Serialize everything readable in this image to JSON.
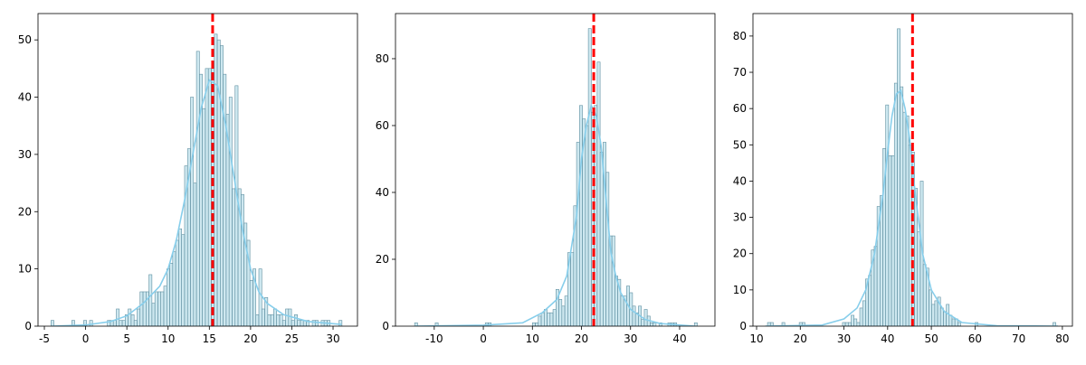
{
  "chart_data": [
    {
      "type": "histogram",
      "color": "#add8e6",
      "edgecolor": "#5f8fa0",
      "bins": [
        -4.2,
        -3.84,
        -3.48,
        -3.12,
        -2.76,
        -2.4,
        -2.04,
        -1.68,
        -1.32,
        -0.96,
        -0.6,
        -0.24,
        0.12,
        0.48,
        0.84,
        1.2,
        1.56,
        1.92,
        2.28,
        2.64,
        3.0,
        3.36,
        3.72,
        4.08,
        4.44,
        4.8,
        5.16,
        5.52,
        5.88,
        6.24,
        6.6,
        6.96,
        7.32,
        7.68,
        8.04,
        8.4,
        8.76,
        9.12,
        9.48,
        9.84,
        10.2,
        10.56,
        10.92,
        11.28,
        11.64,
        12.0,
        12.36,
        12.72,
        13.08,
        13.44,
        13.8,
        14.16,
        14.52,
        14.88,
        15.24,
        15.6,
        15.96,
        16.32,
        16.68,
        17.04,
        17.4,
        17.76,
        18.12,
        18.48,
        18.84,
        19.2,
        19.56,
        19.92,
        20.28,
        20.64,
        21.0,
        21.36,
        21.72,
        22.08,
        22.44,
        22.8,
        23.16,
        23.52,
        23.88,
        24.24,
        24.6,
        24.96,
        25.32,
        25.68,
        26.04,
        26.4,
        26.76,
        27.12,
        27.48,
        27.84,
        28.2,
        28.56,
        28.92,
        29.28,
        29.64,
        30.0,
        30.36,
        30.72,
        31.08,
        31.44
      ],
      "values": [
        1,
        0,
        0,
        0,
        0,
        0,
        0,
        1,
        0,
        0,
        0,
        1,
        0,
        1,
        0,
        0,
        0,
        0,
        0,
        1,
        1,
        1,
        3,
        1,
        1,
        2,
        3,
        2,
        1,
        3,
        6,
        6,
        6,
        9,
        4,
        6,
        6,
        6,
        7,
        10,
        11,
        13,
        15,
        17,
        16,
        28,
        31,
        40,
        25,
        48,
        44,
        38,
        45,
        45,
        45,
        51,
        50,
        49,
        44,
        37,
        40,
        24,
        42,
        24,
        23,
        18,
        15,
        8,
        10,
        2,
        10,
        3,
        5,
        2,
        2,
        3,
        2,
        2,
        1,
        3,
        3,
        1,
        2,
        1,
        1,
        1,
        1,
        0,
        1,
        1,
        0,
        1,
        1,
        1,
        0,
        0,
        0,
        1,
        0
      ],
      "kde": {
        "color": "#87ceeb",
        "x": [
          -4,
          0,
          3,
          5,
          7,
          9,
          10,
          11,
          12,
          13,
          14,
          15,
          16,
          17,
          18,
          19,
          20,
          21,
          22,
          24,
          27,
          31
        ],
        "values": [
          0,
          0.2,
          0.8,
          1.8,
          4,
          7,
          10,
          15,
          22,
          30,
          38,
          43,
          42,
          35,
          26,
          17,
          10,
          6,
          4,
          2,
          0.8,
          0.3
        ]
      },
      "mean_line": {
        "value": 15.4,
        "color": "#ff0000"
      },
      "xlim": [
        -5.77,
        32.96
      ],
      "ylim": [
        0,
        54.6
      ],
      "xticks": [
        -5,
        0,
        5,
        10,
        15,
        20,
        25,
        30
      ],
      "yticks": [
        0,
        10,
        20,
        30,
        40,
        50
      ]
    },
    {
      "type": "histogram",
      "color": "#add8e6",
      "edgecolor": "#5f8fa0",
      "bins": [
        -14,
        -13.4,
        -12.8,
        -12.2,
        -11.6,
        -11,
        -10.4,
        -9.8,
        -9.2,
        -8.6,
        -8,
        -7.4,
        -6.8,
        -6.2,
        -5.6,
        -5,
        -4.4,
        -3.8,
        -3.2,
        -2.6,
        -2,
        -1.4,
        -0.8,
        -0.2,
        0.4,
        1,
        1.6,
        2.2,
        2.8,
        3.4,
        4,
        4.6,
        5.2,
        5.8,
        6.4,
        7,
        7.6,
        8.2,
        8.8,
        9.4,
        10,
        10.6,
        11.2,
        11.8,
        12.4,
        13,
        13.6,
        14.2,
        14.8,
        15.4,
        16,
        16.6,
        17.2,
        17.8,
        18.4,
        19,
        19.6,
        20.2,
        20.8,
        21.4,
        22,
        22.6,
        23.2,
        23.8,
        24.4,
        25,
        25.6,
        26.2,
        26.8,
        27.4,
        28,
        28.6,
        29.2,
        29.8,
        30.4,
        31,
        31.6,
        32.2,
        32.8,
        33.4,
        34,
        34.6,
        35.2,
        35.8,
        36.4,
        37,
        37.6,
        38.2,
        38.8,
        39.4,
        40,
        40.6,
        41.2,
        41.8,
        42.4,
        43,
        43.6
      ],
      "values": [
        1,
        0,
        0,
        0,
        0,
        0,
        0,
        1,
        0,
        0,
        0,
        0,
        0,
        0,
        0,
        0,
        0,
        0,
        0,
        0,
        0,
        0,
        0,
        0,
        1,
        1,
        0,
        0,
        0,
        0,
        0,
        0,
        0,
        0,
        0,
        0,
        0,
        0,
        0,
        0,
        1,
        1,
        3,
        4,
        5,
        4,
        4,
        5,
        11,
        8,
        6,
        9,
        22,
        22,
        36,
        55,
        66,
        62,
        60,
        89,
        64,
        66,
        79,
        52,
        55,
        46,
        27,
        27,
        15,
        14,
        9,
        9,
        12,
        10,
        6,
        4,
        6,
        2,
        5,
        3,
        1,
        1,
        0,
        1,
        0,
        0,
        1,
        1,
        1,
        0,
        0,
        0,
        0,
        0,
        0,
        1
      ],
      "kde": {
        "color": "#87ceeb",
        "x": [
          -14,
          0,
          8,
          12,
          15,
          17,
          19,
          20,
          21,
          22,
          23,
          24,
          25,
          26,
          27,
          28,
          30,
          33,
          36,
          43
        ],
        "values": [
          0,
          0.3,
          1,
          4,
          8,
          15,
          33,
          50,
          60,
          66,
          63,
          54,
          38,
          22,
          15,
          10,
          5,
          2,
          0.8,
          0
        ]
      },
      "mean_line": {
        "value": 22.5,
        "color": "#ff0000"
      },
      "xlim": [
        -17.9,
        47.2
      ],
      "ylim": [
        0,
        93.5
      ],
      "xticks": [
        -10,
        0,
        10,
        20,
        30,
        40
      ],
      "yticks": [
        0,
        20,
        40,
        60,
        80
      ]
    },
    {
      "type": "histogram",
      "color": "#add8e6",
      "edgecolor": "#5f8fa0",
      "bins": [
        12.5,
        13.16,
        13.82,
        14.48,
        15.14,
        15.8,
        16.46,
        17.12,
        17.78,
        18.44,
        19.1,
        19.76,
        20.42,
        21.08,
        21.74,
        22.4,
        23.06,
        23.72,
        24.38,
        25.04,
        25.7,
        26.36,
        27.02,
        27.68,
        28.34,
        29,
        29.66,
        30.32,
        30.98,
        31.64,
        32.3,
        32.96,
        33.62,
        34.28,
        34.94,
        35.6,
        36.26,
        36.92,
        37.58,
        38.24,
        38.9,
        39.56,
        40.22,
        40.88,
        41.54,
        42.2,
        42.86,
        43.52,
        44.18,
        44.84,
        45.5,
        46.16,
        46.82,
        47.48,
        48.14,
        48.8,
        49.46,
        50.12,
        50.78,
        51.44,
        52.1,
        52.76,
        53.42,
        54.08,
        54.74,
        55.4,
        56.06,
        56.72,
        57.38,
        58.04,
        58.7,
        59.36,
        60.02,
        60.68,
        61.34,
        62,
        62.66,
        63.32,
        63.98,
        64.64,
        65.3,
        65.96,
        66.62,
        67.28,
        67.94,
        68.6,
        69.26,
        69.92,
        70.58,
        71.24,
        71.9,
        72.56,
        73.22,
        73.88,
        74.54,
        75.2,
        75.86,
        76.52,
        77.18,
        77.84,
        78.5
      ],
      "values": [
        1,
        1,
        0,
        0,
        0,
        1,
        0,
        0,
        0,
        0,
        0,
        1,
        1,
        0,
        0,
        0,
        0,
        0,
        0,
        0,
        0,
        0,
        0,
        0,
        0,
        0,
        1,
        1,
        1,
        3,
        2,
        1,
        5,
        7,
        13,
        14,
        21,
        22,
        33,
        36,
        49,
        61,
        47,
        47,
        67,
        82,
        66,
        59,
        58,
        50,
        48,
        38,
        26,
        40,
        17,
        16,
        10,
        6,
        7,
        8,
        5,
        4,
        6,
        3,
        2,
        2,
        1,
        0,
        0,
        0,
        0,
        0,
        1,
        0,
        0,
        0,
        0,
        0,
        0,
        0,
        0,
        0,
        0,
        0,
        0,
        0,
        0,
        0,
        0,
        0,
        0,
        0,
        0,
        0,
        0,
        0,
        0,
        0,
        0,
        1
      ],
      "kde": {
        "color": "#87ceeb",
        "x": [
          12,
          25,
          30,
          33,
          35,
          37,
          39,
          40,
          41,
          42,
          43,
          44,
          45,
          46,
          47,
          48,
          50,
          53,
          57,
          65,
          79
        ],
        "values": [
          0,
          0.3,
          2,
          5,
          10,
          20,
          37,
          48,
          58,
          64,
          65,
          60,
          52,
          40,
          30,
          20,
          10,
          4,
          1,
          0.1,
          0
        ]
      },
      "mean_line": {
        "value": 45.7,
        "color": "#ff0000"
      },
      "xlim": [
        9.17,
        82.3
      ],
      "ylim": [
        0,
        86.2
      ],
      "xticks": [
        10,
        20,
        30,
        40,
        50,
        60,
        70,
        80
      ],
      "yticks": [
        0,
        10,
        20,
        30,
        40,
        50,
        60,
        70,
        80
      ]
    }
  ]
}
